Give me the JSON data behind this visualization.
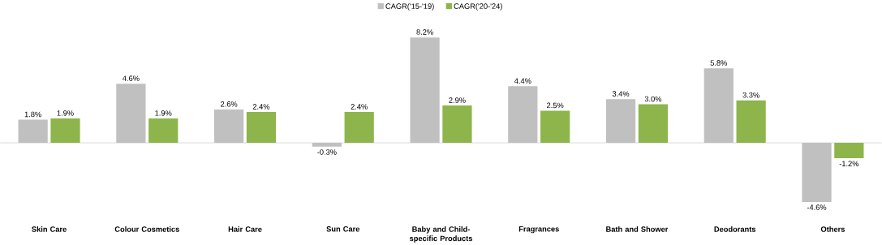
{
  "chart_data": {
    "type": "bar",
    "categories": [
      "Skin Care",
      "Colour Cosmetics",
      "Hair Care",
      "Sun Care",
      "Baby and Child-specific Products",
      "Fragrances",
      "Bath and Shower",
      "Deodorants",
      "Others"
    ],
    "series": [
      {
        "name": "CAGR('15-'19)",
        "color": "#c0c0c0",
        "values": [
          1.8,
          4.6,
          2.6,
          -0.3,
          8.2,
          4.4,
          3.4,
          5.8,
          -4.6
        ],
        "value_labels": [
          "1.8%",
          "4.6%",
          "2.6%",
          "-0.3%",
          "8.2%",
          "4.4%",
          "3.4%",
          "5.8%",
          "-4.6%"
        ]
      },
      {
        "name": "CAGR('20-'24)",
        "color": "#8db54b",
        "values": [
          1.9,
          1.9,
          2.4,
          2.4,
          2.9,
          2.5,
          3.0,
          3.3,
          -1.2
        ],
        "value_labels": [
          "1.9%",
          "1.9%",
          "2.4%",
          "2.4%",
          "2.9%",
          "2.5%",
          "3.0%",
          "3.3%",
          "-1.2%"
        ]
      }
    ],
    "legend": "top"
  }
}
